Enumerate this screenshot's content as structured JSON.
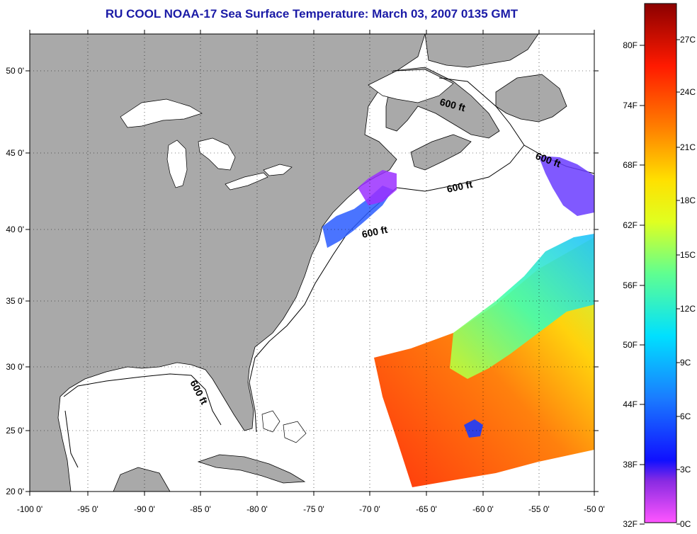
{
  "title": "RU COOL  NOAA-17  Sea Surface Temperature:  March 03, 2007 0135 GMT",
  "map": {
    "lon_ticks": [
      "-100 0'",
      "-95 0'",
      "-90 0'",
      "-85 0'",
      "-80 0'",
      "-75 0'",
      "-70 0'",
      "-65 0'",
      "-60 0'",
      "-55 0'",
      "-50 0'"
    ],
    "lat_ticks": [
      "50 0'",
      "45 0'",
      "40 0'",
      "35 0'",
      "30 0'",
      "25 0'",
      "20 0'"
    ],
    "contour_labels": [
      "600 ft",
      "600 ft",
      "600 ft",
      "600 ft",
      "600 ft"
    ],
    "colors": {
      "land": "#a9a9a9",
      "ocean": "#ffffff",
      "grid": "#000000"
    }
  },
  "colorbar": {
    "fahrenheit_labels": [
      "80F",
      "74F",
      "68F",
      "62F",
      "56F",
      "50F",
      "44F",
      "38F",
      "32F"
    ],
    "celsius_labels": [
      "27C",
      "24C",
      "21C",
      "18C",
      "15C",
      "12C",
      "9C",
      "6C",
      "3C",
      "0C"
    ]
  }
}
